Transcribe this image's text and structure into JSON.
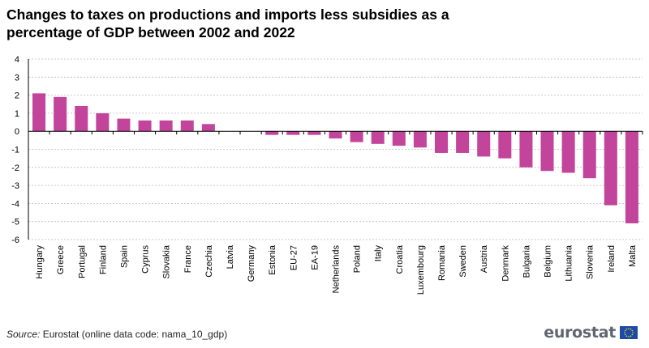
{
  "title_line1": "Changes to taxes on productions and imports less subsidies as a",
  "title_line2": "percentage of GDP between 2002 and 2022",
  "source": {
    "label": "Source:",
    "text": "Eurostat (online data code: nama_10_gdp)"
  },
  "logo": {
    "text": "eurostat",
    "flag_icon": "eu-flag-icon"
  },
  "colors": {
    "bar": "#c2449b",
    "grid": "#b9b9b9",
    "axis": "#000000"
  },
  "chart_data": {
    "type": "bar",
    "title": "Changes to taxes on productions and imports less subsidies as a percentage of GDP between 2002 and 2022",
    "xlabel": "",
    "ylabel": "",
    "ylim": [
      -6,
      4
    ],
    "yticks": [
      4,
      3,
      2,
      1,
      0,
      -1,
      -2,
      -3,
      -4,
      -5,
      -6
    ],
    "grid": true,
    "categories": [
      "Hungary",
      "Greece",
      "Portugal",
      "Finland",
      "Spain",
      "Cyprus",
      "Slovakia",
      "France",
      "Czechia",
      "Latvia",
      "Germany",
      "Estonia",
      "EU-27",
      "EA-19",
      "Netherlands",
      "Poland",
      "Italy",
      "Croatia",
      "Luxembourg",
      "Romania",
      "Sweden",
      "Austria",
      "Denmark",
      "Bulgaria",
      "Belgium",
      "Lithuania",
      "Slovenia",
      "Ireland",
      "Malta"
    ],
    "values": [
      2.1,
      1.9,
      1.4,
      1.0,
      0.7,
      0.6,
      0.6,
      0.6,
      0.4,
      0.0,
      0.0,
      -0.2,
      -0.2,
      -0.2,
      -0.4,
      -0.6,
      -0.7,
      -0.8,
      -0.9,
      -1.2,
      -1.2,
      -1.4,
      -1.5,
      -2.0,
      -2.2,
      -2.3,
      -2.6,
      -4.1,
      -5.1
    ]
  }
}
